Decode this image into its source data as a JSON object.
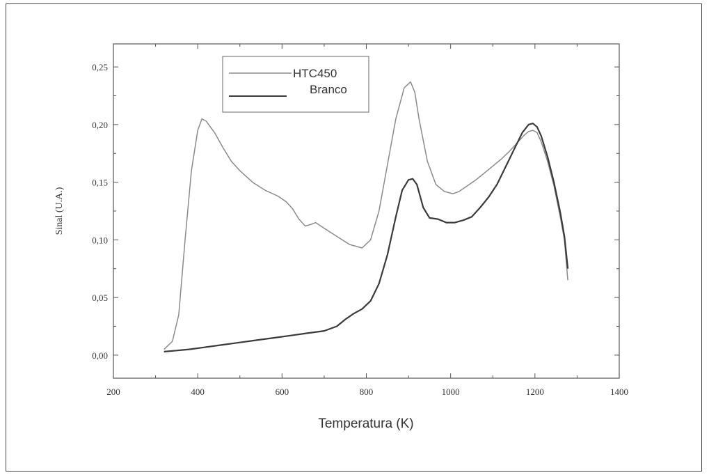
{
  "chart_data": {
    "type": "line",
    "xlabel": "Temperatura (K)",
    "ylabel": "Sinal (U.A.)",
    "xlim": [
      200,
      1400
    ],
    "ylim": [
      -0.02,
      0.27
    ],
    "xticks": [
      {
        "value": 200,
        "label": "200"
      },
      {
        "value": 400,
        "label": "400"
      },
      {
        "value": 600,
        "label": "600"
      },
      {
        "value": 800,
        "label": "800"
      },
      {
        "value": 1000,
        "label": "1000"
      },
      {
        "value": 1200,
        "label": "1200"
      },
      {
        "value": 1400,
        "label": "1400"
      }
    ],
    "yticks": [
      {
        "value": 0.0,
        "label": "0,00"
      },
      {
        "value": 0.05,
        "label": "0,05"
      },
      {
        "value": 0.1,
        "label": "0,10"
      },
      {
        "value": 0.15,
        "label": "0,15"
      },
      {
        "value": 0.2,
        "label": "0,20"
      },
      {
        "value": 0.25,
        "label": "0,25"
      }
    ],
    "grid": false,
    "legend": "top-left",
    "series": [
      {
        "name": "HTC450",
        "color": "#8a8a8a",
        "x": [
          320,
          340,
          355,
          370,
          385,
          400,
          410,
          420,
          440,
          460,
          480,
          500,
          530,
          560,
          590,
          610,
          625,
          640,
          655,
          665,
          680,
          700,
          730,
          760,
          790,
          810,
          830,
          850,
          870,
          890,
          905,
          915,
          925,
          945,
          965,
          985,
          1005,
          1020,
          1040,
          1060,
          1080,
          1100,
          1120,
          1140,
          1160,
          1175,
          1185,
          1195,
          1205,
          1215,
          1230,
          1245,
          1260,
          1270,
          1278
        ],
        "y": [
          0.005,
          0.012,
          0.035,
          0.1,
          0.16,
          0.195,
          0.205,
          0.203,
          0.193,
          0.18,
          0.168,
          0.16,
          0.15,
          0.143,
          0.138,
          0.133,
          0.127,
          0.118,
          0.112,
          0.113,
          0.115,
          0.11,
          0.103,
          0.096,
          0.093,
          0.1,
          0.125,
          0.165,
          0.205,
          0.232,
          0.237,
          0.228,
          0.205,
          0.168,
          0.148,
          0.142,
          0.14,
          0.142,
          0.147,
          0.152,
          0.158,
          0.164,
          0.17,
          0.177,
          0.185,
          0.191,
          0.194,
          0.195,
          0.193,
          0.185,
          0.168,
          0.147,
          0.12,
          0.1,
          0.065
        ]
      },
      {
        "name": "Branco",
        "color": "#3a3a3a",
        "x": [
          320,
          350,
          380,
          420,
          460,
          500,
          540,
          580,
          620,
          660,
          700,
          730,
          750,
          770,
          790,
          810,
          830,
          850,
          870,
          885,
          900,
          910,
          920,
          935,
          950,
          970,
          990,
          1010,
          1030,
          1050,
          1070,
          1090,
          1110,
          1130,
          1150,
          1170,
          1185,
          1195,
          1205,
          1215,
          1230,
          1245,
          1260,
          1270,
          1278
        ],
        "y": [
          0.003,
          0.004,
          0.005,
          0.007,
          0.009,
          0.011,
          0.013,
          0.015,
          0.017,
          0.019,
          0.021,
          0.025,
          0.031,
          0.036,
          0.04,
          0.047,
          0.062,
          0.087,
          0.12,
          0.143,
          0.152,
          0.153,
          0.148,
          0.128,
          0.119,
          0.118,
          0.115,
          0.115,
          0.117,
          0.12,
          0.128,
          0.137,
          0.148,
          0.163,
          0.178,
          0.193,
          0.2,
          0.201,
          0.198,
          0.19,
          0.172,
          0.15,
          0.124,
          0.103,
          0.075
        ]
      }
    ]
  }
}
